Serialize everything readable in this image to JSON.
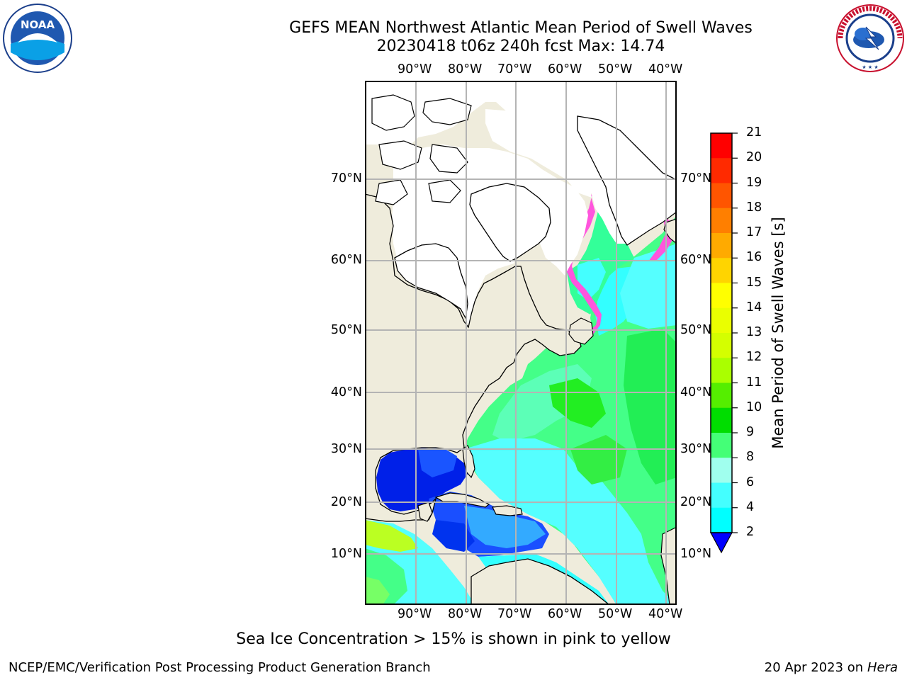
{
  "title": {
    "line1": "GEFS MEAN Northwest Atlantic Mean Period of Swell Waves",
    "line2": "20230418 t06z 240h fcst   Max: 14.74"
  },
  "logos": {
    "left": {
      "text": "NOAA",
      "ring_text": "NATIONAL OCEANIC AND ATMOSPHERIC ADMINISTRATION · U.S. DEPARTMENT OF COMMERCE"
    },
    "right": {
      "text": "NATIONAL WEATHER SERVICE"
    }
  },
  "map": {
    "lon_labels": [
      "90°W",
      "80°W",
      "70°W",
      "60°W",
      "50°W",
      "40°W"
    ],
    "lat_labels": [
      "70°N",
      "60°N",
      "50°N",
      "40°N",
      "30°N",
      "20°N",
      "10°N"
    ],
    "colors": {
      "land": "#efecdc",
      "gridline": "#b4b4b4",
      "coast": "#000000",
      "ice_pink": "#ff66cc",
      "ice_yellow": "#ffcc33"
    }
  },
  "colorbar": {
    "label": "Mean Period of Swell Waves [s]",
    "ticks": [
      "21",
      "20",
      "19",
      "18",
      "17",
      "16",
      "15",
      "14",
      "13",
      "12",
      "11",
      "10",
      "9",
      "8",
      "6",
      "4",
      "2"
    ],
    "band_colors": [
      "#ff0000",
      "#ff2a00",
      "#ff5500",
      "#ff7f00",
      "#ffaa00",
      "#ffd400",
      "#ffff00",
      "#eaff00",
      "#d4ff00",
      "#aaff00",
      "#55ee00",
      "#00dd00",
      "#44ff77",
      "#a0ffee",
      "#44ffff",
      "#00ffff",
      "#00ddff",
      "#0070ff"
    ],
    "extend_color": "#0000ff"
  },
  "footnote": "Sea Ice Concentration > 15% is shown in pink to yellow",
  "credit_left": "NCEP/EMC/Verification Post Processing Product Generation Branch",
  "credit_right_date": "20 Apr 2023 on",
  "credit_right_host": "Hera"
}
